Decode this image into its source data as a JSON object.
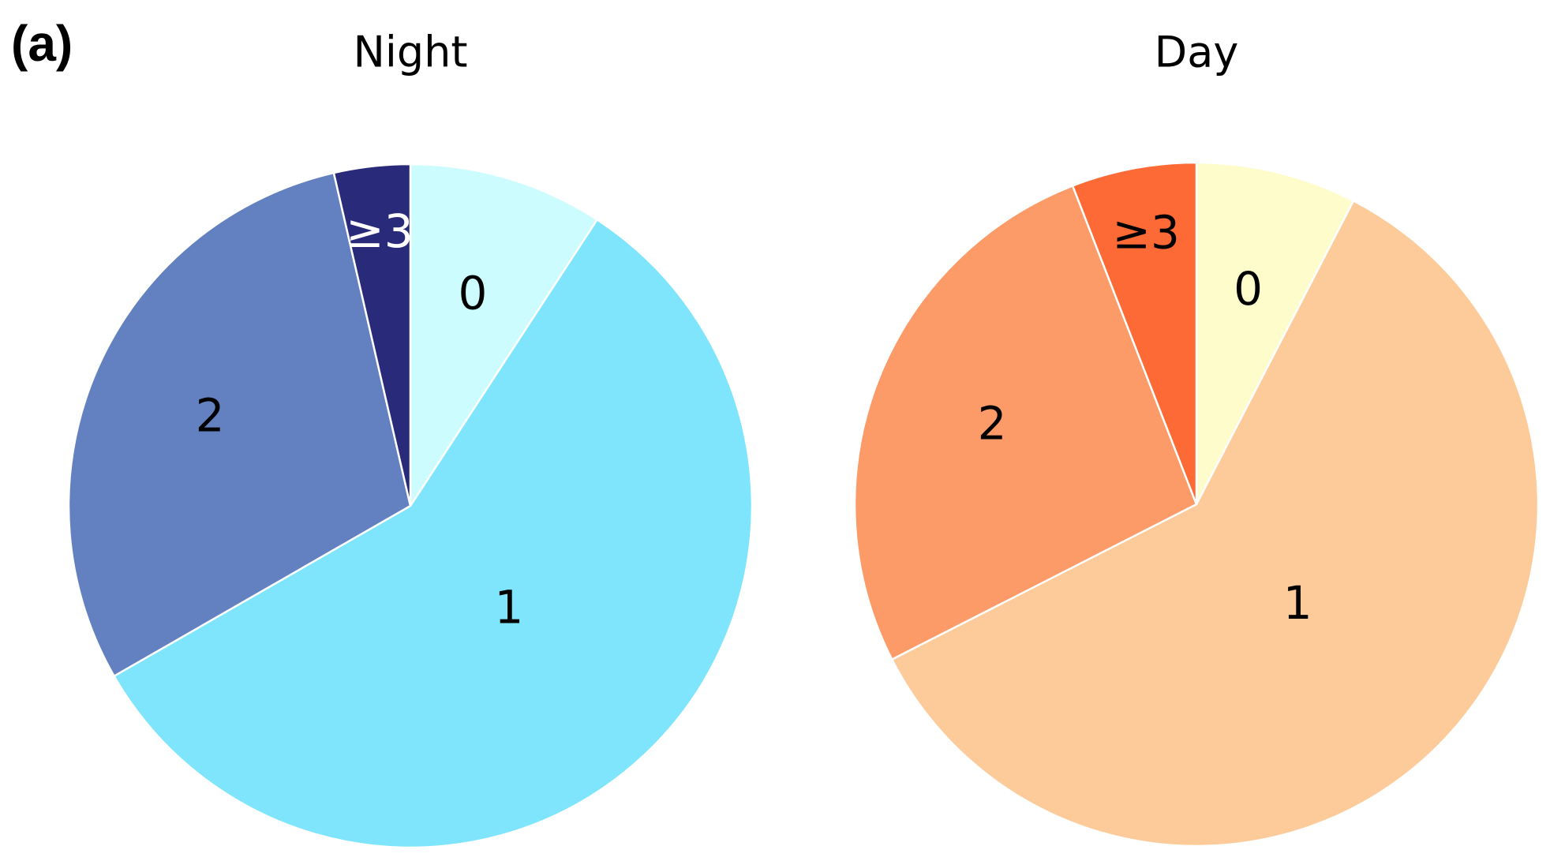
{
  "panel_label": "(a)",
  "chart_data": [
    {
      "type": "pie",
      "title": "Night",
      "categories": [
        "0",
        "1",
        "2",
        "≥3"
      ],
      "values": [
        9.2,
        57.5,
        29.7,
        3.6
      ],
      "colors": [
        "#ccfcfd",
        "#7fe5fc",
        "#6381c0",
        "#2a2a7a"
      ]
    },
    {
      "type": "pie",
      "title": "Day",
      "categories": [
        "0",
        "1",
        "2",
        "≥3"
      ],
      "values": [
        7.6,
        59.9,
        26.6,
        5.9
      ],
      "colors": [
        "#fefccb",
        "#fdca99",
        "#fd9b68",
        "#fd6a36"
      ]
    }
  ]
}
